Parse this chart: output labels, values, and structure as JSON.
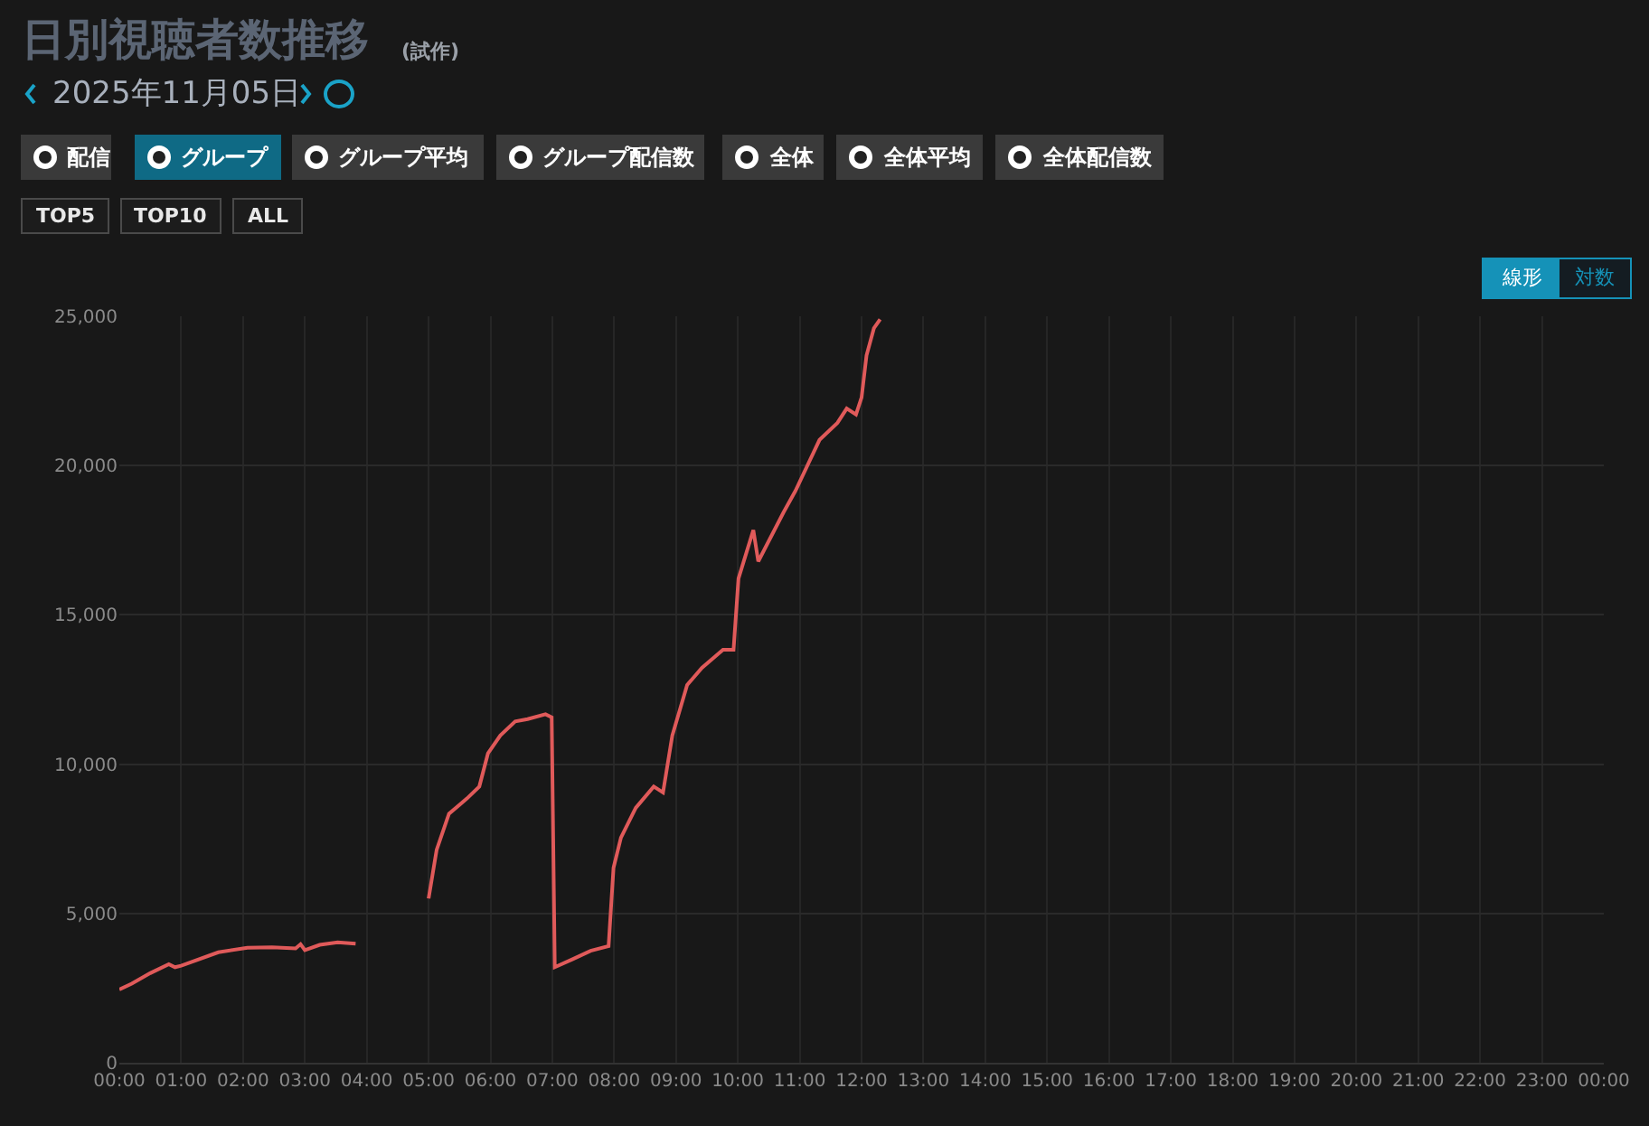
{
  "chart_data": {
    "type": "line",
    "title": "日別視聴者数推移",
    "subtitle": "2025年11月05日",
    "annotations": [
      "(試作)",
      "配信",
      "グループ",
      "グループ平均",
      "グループ配信数",
      "全体",
      "全体平均",
      "全体配信数",
      "TOP5",
      "TOP10",
      "ALL",
      "線形",
      "対数"
    ],
    "x": [
      0,
      0.2,
      0.5,
      0.8,
      0.9,
      1.0,
      1.6,
      2.07,
      2.47,
      2.85,
      2.93,
      3.0,
      3.24,
      3.53,
      3.82,
      3.9,
      5.0,
      5.13,
      5.33,
      5.62,
      5.82,
      5.96,
      6.16,
      6.4,
      6.6,
      6.89,
      6.99,
      7.04,
      7.33,
      7.62,
      7.91,
      7.99,
      8.11,
      8.35,
      8.64,
      8.79,
      8.94,
      9.18,
      9.42,
      9.76,
      9.93,
      10.01,
      10.25,
      10.33,
      10.74,
      10.93,
      11.32,
      11.61,
      11.76,
      11.91,
      12.0,
      12.08,
      12.2,
      12.3
    ],
    "series": [
      {
        "color": "#e05a5a",
        "values": [
          2450,
          2650,
          3000,
          3300,
          3200,
          3250,
          3700,
          3850,
          3870,
          3830,
          3970,
          3770,
          3950,
          4030,
          3990,
          null,
          5500,
          7130,
          8340,
          8850,
          9250,
          10360,
          10960,
          11430,
          11510,
          11670,
          11570,
          3200,
          3470,
          3750,
          3910,
          6530,
          7540,
          8540,
          9250,
          9050,
          10960,
          12650,
          13230,
          13830,
          13830,
          16220,
          17840,
          16790,
          18440,
          19150,
          20860,
          21430,
          21910,
          21710,
          22280,
          23690,
          24600,
          24900
        ]
      }
    ],
    "xlim": [
      0,
      24
    ],
    "xticks": [
      {
        "value": 0,
        "label": "00:00"
      },
      {
        "value": 1,
        "label": "01:00"
      },
      {
        "value": 2,
        "label": "02:00"
      },
      {
        "value": 3,
        "label": "03:00"
      },
      {
        "value": 4,
        "label": "04:00"
      },
      {
        "value": 5,
        "label": "05:00"
      },
      {
        "value": 6,
        "label": "06:00"
      },
      {
        "value": 7,
        "label": "07:00"
      },
      {
        "value": 8,
        "label": "08:00"
      },
      {
        "value": 9,
        "label": "09:00"
      },
      {
        "value": 10,
        "label": "10:00"
      },
      {
        "value": 11,
        "label": "11:00"
      },
      {
        "value": 12,
        "label": "12:00"
      },
      {
        "value": 13,
        "label": "13:00"
      },
      {
        "value": 14,
        "label": "14:00"
      },
      {
        "value": 15,
        "label": "15:00"
      },
      {
        "value": 16,
        "label": "16:00"
      },
      {
        "value": 17,
        "label": "17:00"
      },
      {
        "value": 18,
        "label": "18:00"
      },
      {
        "value": 19,
        "label": "19:00"
      },
      {
        "value": 20,
        "label": "20:00"
      },
      {
        "value": 21,
        "label": "21:00"
      },
      {
        "value": 22,
        "label": "22:00"
      },
      {
        "value": 23,
        "label": "23:00"
      },
      {
        "value": 24,
        "label": "00:00"
      }
    ],
    "ylim": [
      0,
      25000
    ],
    "yticks": [
      0,
      {
        "value": 5000,
        "label": "5,000"
      },
      {
        "value": 10000,
        "label": "10,000"
      },
      {
        "value": 15000,
        "label": "15,000"
      },
      {
        "value": 20000,
        "label": "20,000"
      },
      {
        "value": 25000,
        "label": "25,000"
      }
    ],
    "grid": true,
    "marker": "none",
    "line_style": "solid"
  }
}
